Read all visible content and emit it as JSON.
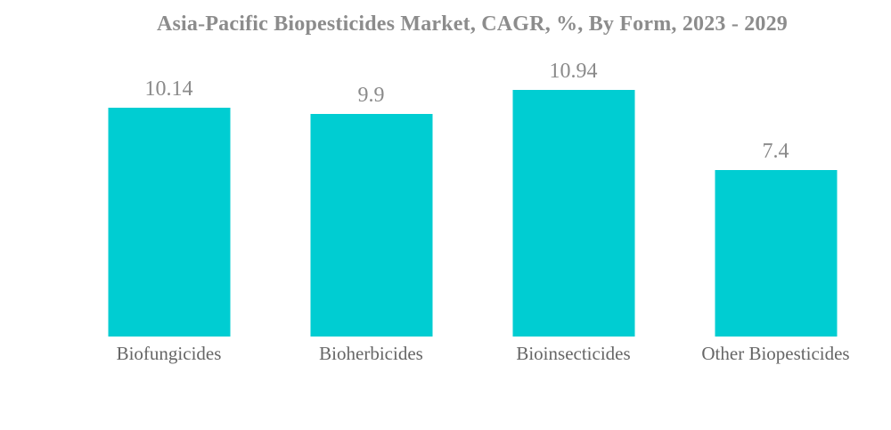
{
  "chart_data": {
    "type": "bar",
    "title": "Asia-Pacific Biopesticides Market, CAGR, %, By Form, 2023 - 2029",
    "categories": [
      "Biofungicides",
      "Bioherbicides",
      "Bioinsecticides",
      "Other Biopesticides"
    ],
    "values": [
      10.14,
      9.9,
      10.94,
      7.4
    ],
    "value_labels": [
      "10.14",
      "9.9",
      "10.94",
      "7.4"
    ],
    "xlabel": "",
    "ylabel": "CAGR, %",
    "ylim": [
      0,
      12
    ],
    "grid": false,
    "legend_position": "none",
    "axes_visible": false,
    "colors": {
      "bar": "#00CDD2",
      "title": "#8C8C8C",
      "value_label": "#8A8A8A",
      "category_label": "#666666",
      "background": "#FFFFFF"
    }
  }
}
